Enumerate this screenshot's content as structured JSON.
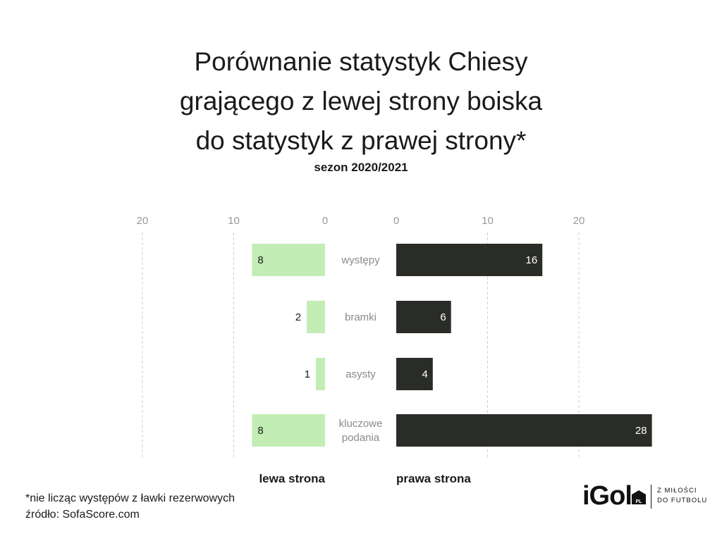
{
  "header": {
    "title_lines": [
      "Porównanie statystyk Chiesy",
      "grającego z lewej strony boiska",
      "do statystyk z prawej strony*"
    ],
    "subtitle": "sezon 2020/2021"
  },
  "footnotes": {
    "note": "*nie licząc występów z ławki rezerwowych",
    "source": "źródło: SofaScore.com"
  },
  "logo": {
    "word": "iGol",
    "badge": "PL",
    "tagline": [
      "Z MIŁOŚCI",
      "DO FUTBOLU"
    ]
  },
  "colors": {
    "left": "#c2edb5",
    "right": "#2a2c28",
    "grid": "#d0d0d0",
    "axis_text": "#999999",
    "category_text": "#8a8a8a"
  },
  "chart_data": {
    "type": "bar",
    "orientation": "horizontal-butterfly",
    "categories": [
      "występy",
      "bramki",
      "asysty",
      "kluczowe podania"
    ],
    "series": [
      {
        "name": "lewa strona",
        "values": [
          8,
          2,
          1,
          8
        ]
      },
      {
        "name": "prawa strona",
        "values": [
          16,
          6,
          4,
          28
        ]
      }
    ],
    "left_axis": {
      "ticks": [
        20,
        10,
        0
      ],
      "range": [
        0,
        20
      ],
      "reversed": true
    },
    "right_axis": {
      "ticks": [
        0,
        10,
        20
      ],
      "range": [
        0,
        28
      ]
    },
    "grid": true,
    "legend_placement": "bottom"
  }
}
